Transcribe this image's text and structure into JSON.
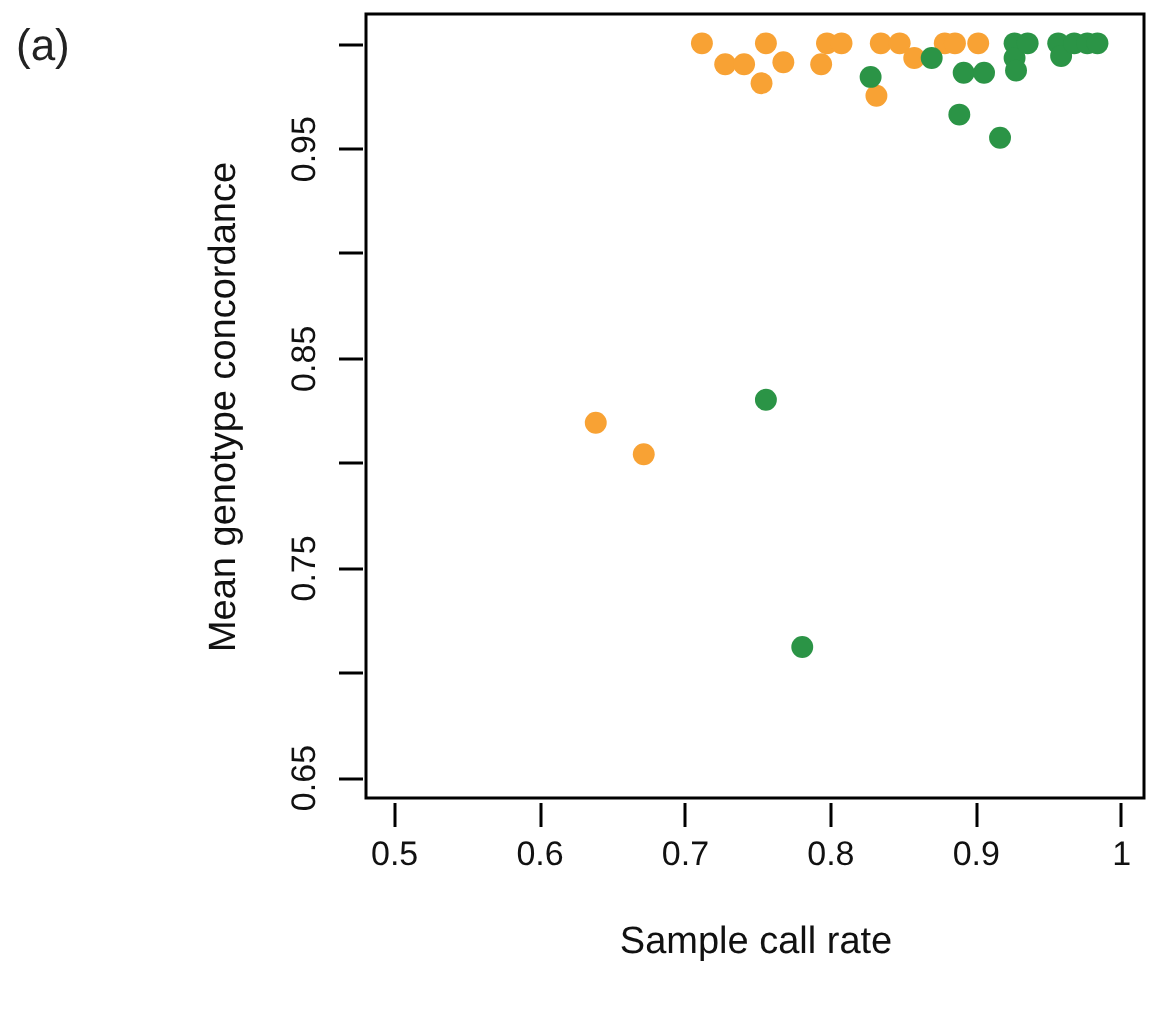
{
  "chart_data": {
    "type": "scatter",
    "title": "(a)",
    "xlabel": "Sample call rate",
    "ylabel": "Mean genotype concordance",
    "marker": "circle",
    "grid": false,
    "xlim": [
      0.481,
      1.016
    ],
    "ylim": [
      0.64,
      1.014
    ],
    "xticks": [
      0.5,
      0.6,
      0.7,
      0.8,
      0.9,
      1.0
    ],
    "yticks": [
      0.65,
      {
        "value": 0.7,
        "label": null
      },
      0.75,
      {
        "value": 0.8,
        "label": null
      },
      0.85,
      {
        "value": 0.9,
        "label": null
      },
      0.95,
      {
        "value": 1.0,
        "label": null
      }
    ],
    "series": [
      {
        "color": "#f8a234",
        "x": [
          0.712,
          0.728,
          0.741,
          0.753,
          0.756,
          0.768,
          0.794,
          0.798,
          0.808,
          0.835,
          0.848,
          0.858,
          0.832,
          0.879,
          0.886,
          0.902,
          0.639,
          0.672
        ],
        "values": [
          1.0,
          0.99,
          0.99,
          0.981,
          1.0,
          0.991,
          0.99,
          1.0,
          1.0,
          1.0,
          1.0,
          0.993,
          0.975,
          1.0,
          1.0,
          1.0,
          0.819,
          0.804
        ]
      },
      {
        "color": "#2b9446",
        "x": [
          0.828,
          0.87,
          0.889,
          0.892,
          0.906,
          0.917,
          0.927,
          0.927,
          0.936,
          0.928,
          0.957,
          0.959,
          0.968,
          0.977,
          0.984,
          0.756,
          0.781
        ],
        "values": [
          0.984,
          0.993,
          0.966,
          0.986,
          0.986,
          0.955,
          1.0,
          0.993,
          1.0,
          0.987,
          1.0,
          0.994,
          1.0,
          1.0,
          1.0,
          0.83,
          0.712
        ]
      }
    ]
  }
}
